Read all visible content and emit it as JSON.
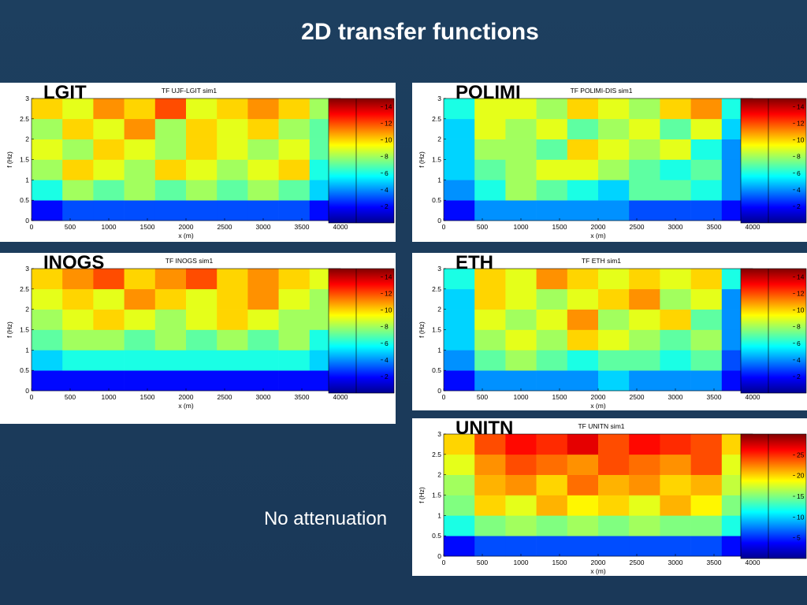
{
  "slide_title": "2D transfer functions",
  "note": "No attenuation",
  "chart_data": [
    {
      "type": "heatmap",
      "panel_label": "LGIT",
      "title": "TF UJF-LGIT sim1",
      "xlabel": "x (m)",
      "ylabel": "f (Hz)",
      "xlim": [
        0,
        4000
      ],
      "ylim": [
        0,
        3
      ],
      "xticks": [
        0,
        500,
        1000,
        1500,
        2000,
        2500,
        3000,
        3500,
        4000
      ],
      "yticks": [
        0,
        0.5,
        1,
        1.5,
        2,
        2.5,
        3
      ],
      "clim": [
        0,
        15
      ],
      "cticks": [
        2,
        4,
        6,
        8,
        10,
        12,
        14
      ],
      "z": [
        [
          2,
          3,
          3,
          3,
          3,
          3,
          3,
          3,
          3,
          2
        ],
        [
          6,
          8,
          7,
          8,
          7,
          8,
          7,
          8,
          7,
          5
        ],
        [
          8,
          10,
          9,
          8,
          10,
          9,
          8,
          9,
          10,
          6
        ],
        [
          9,
          8,
          10,
          9,
          8,
          10,
          9,
          8,
          9,
          7
        ],
        [
          8,
          10,
          9,
          11,
          8,
          10,
          9,
          10,
          8,
          7
        ],
        [
          10,
          9,
          11,
          10,
          12,
          9,
          10,
          11,
          10,
          8
        ]
      ]
    },
    {
      "type": "heatmap",
      "panel_label": "POLIMI",
      "title": "TF POLIMI-DIS sim1",
      "xlabel": "x (m)",
      "ylabel": "f (Hz)",
      "xlim": [
        0,
        4000
      ],
      "ylim": [
        0,
        3
      ],
      "xticks": [
        0,
        500,
        1000,
        1500,
        2000,
        2500,
        3000,
        3500,
        4000
      ],
      "yticks": [
        0,
        0.5,
        1,
        1.5,
        2,
        2.5,
        3
      ],
      "clim": [
        0,
        15
      ],
      "cticks": [
        2,
        4,
        6,
        8,
        10,
        12,
        14
      ],
      "z": [
        [
          2,
          4,
          4,
          4,
          4,
          4,
          3,
          3,
          3,
          2
        ],
        [
          4,
          6,
          8,
          7,
          6,
          5,
          7,
          7,
          6,
          4
        ],
        [
          5,
          7,
          8,
          9,
          9,
          8,
          7,
          6,
          7,
          4
        ],
        [
          5,
          8,
          8,
          7,
          10,
          9,
          8,
          9,
          6,
          4
        ],
        [
          5,
          9,
          8,
          9,
          7,
          8,
          9,
          7,
          9,
          5
        ],
        [
          6,
          9,
          9,
          8,
          10,
          9,
          8,
          10,
          11,
          6
        ]
      ]
    },
    {
      "type": "heatmap",
      "panel_label": "INOGS",
      "title": "TF INOGS sim1",
      "xlabel": "x (m)",
      "ylabel": "f (Hz)",
      "xlim": [
        0,
        4000
      ],
      "ylim": [
        0,
        3
      ],
      "xticks": [
        0,
        500,
        1000,
        1500,
        2000,
        2500,
        3000,
        3500,
        4000
      ],
      "yticks": [
        0,
        0.5,
        1,
        1.5,
        2,
        2.5,
        3
      ],
      "clim": [
        0,
        15
      ],
      "cticks": [
        2,
        4,
        6,
        8,
        10,
        12,
        14
      ],
      "z": [
        [
          2,
          2,
          2,
          2,
          2,
          2,
          2,
          2,
          2,
          2
        ],
        [
          5,
          6,
          6,
          6,
          6,
          6,
          6,
          6,
          6,
          5
        ],
        [
          7,
          8,
          8,
          7,
          8,
          7,
          8,
          7,
          8,
          6
        ],
        [
          8,
          9,
          10,
          9,
          8,
          9,
          10,
          9,
          8,
          8
        ],
        [
          9,
          10,
          9,
          11,
          10,
          9,
          10,
          11,
          9,
          8
        ],
        [
          10,
          11,
          12,
          10,
          11,
          12,
          10,
          11,
          10,
          9
        ]
      ]
    },
    {
      "type": "heatmap",
      "panel_label": "ETH",
      "title": "TF ETH sim1",
      "xlabel": "x (m)",
      "ylabel": "f (Hz)",
      "xlim": [
        0,
        4000
      ],
      "ylim": [
        0,
        3
      ],
      "xticks": [
        0,
        500,
        1000,
        1500,
        2000,
        2500,
        3000,
        3500,
        4000
      ],
      "yticks": [
        0,
        0.5,
        1,
        1.5,
        2,
        2.5,
        3
      ],
      "clim": [
        0,
        15
      ],
      "cticks": [
        2,
        4,
        6,
        8,
        10,
        12,
        14
      ],
      "z": [
        [
          2,
          4,
          4,
          4,
          4,
          5,
          4,
          4,
          4,
          2
        ],
        [
          4,
          7,
          8,
          7,
          6,
          7,
          7,
          6,
          7,
          3
        ],
        [
          5,
          8,
          9,
          8,
          10,
          9,
          8,
          7,
          8,
          4
        ],
        [
          5,
          9,
          8,
          9,
          11,
          8,
          9,
          10,
          7,
          4
        ],
        [
          5,
          10,
          9,
          8,
          9,
          10,
          11,
          8,
          9,
          4
        ],
        [
          6,
          10,
          9,
          11,
          10,
          9,
          10,
          9,
          10,
          6
        ]
      ]
    },
    {
      "type": "heatmap",
      "panel_label": "UNITN",
      "title": "TF UNITN sim1",
      "xlabel": "x (m)",
      "ylabel": "f (Hz)",
      "xlim": [
        0,
        4000
      ],
      "ylim": [
        0,
        3
      ],
      "xticks": [
        0,
        500,
        1000,
        1500,
        2000,
        2500,
        3000,
        3500,
        4000
      ],
      "yticks": [
        0,
        0.5,
        1,
        1.5,
        2,
        2.5,
        3
      ],
      "clim": [
        0,
        30
      ],
      "cticks": [
        5,
        10,
        15,
        20,
        25
      ],
      "z": [
        [
          4,
          6,
          6,
          6,
          6,
          6,
          6,
          6,
          6,
          4
        ],
        [
          12,
          15,
          16,
          15,
          16,
          15,
          16,
          15,
          15,
          12
        ],
        [
          15,
          20,
          18,
          21,
          19,
          20,
          18,
          21,
          19,
          15
        ],
        [
          16,
          21,
          22,
          20,
          23,
          21,
          22,
          20,
          21,
          17
        ],
        [
          18,
          22,
          24,
          23,
          22,
          24,
          23,
          22,
          24,
          18
        ],
        [
          20,
          24,
          26,
          25,
          27,
          24,
          26,
          25,
          24,
          20
        ]
      ]
    }
  ]
}
